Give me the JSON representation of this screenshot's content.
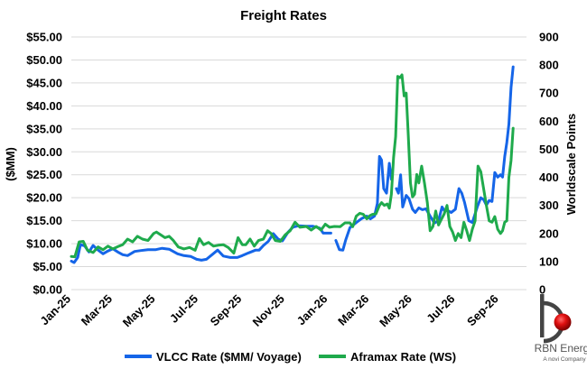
{
  "chart_data": {
    "type": "line",
    "title": "Freight Rates",
    "xlabel": "",
    "ylabel": "($MM)",
    "y2label": "Worldscale Points",
    "ylim": [
      0,
      55
    ],
    "y2lim": [
      0,
      900
    ],
    "yticks": [
      "$0.00",
      "$5.00",
      "$10.00",
      "$15.00",
      "$20.00",
      "$25.00",
      "$30.00",
      "$35.00",
      "$40.00",
      "$45.00",
      "$50.00",
      "$55.00"
    ],
    "y2ticks": [
      "0",
      "100",
      "200",
      "300",
      "400",
      "500",
      "600",
      "700",
      "800",
      "900"
    ],
    "x_range": [
      "2025-01-01",
      "2026-10-10"
    ],
    "xticks": [
      {
        "label": "Jan-25",
        "date": "2025-01-01"
      },
      {
        "label": "Mar-25",
        "date": "2025-03-01"
      },
      {
        "label": "May-25",
        "date": "2025-05-01"
      },
      {
        "label": "Jul-25",
        "date": "2025-07-01"
      },
      {
        "label": "Sep-25",
        "date": "2025-09-01"
      },
      {
        "label": "Nov-25",
        "date": "2025-11-01"
      },
      {
        "label": "Jan-26",
        "date": "2026-01-01"
      },
      {
        "label": "Mar-26",
        "date": "2026-03-01"
      },
      {
        "label": "May-26",
        "date": "2026-05-01"
      },
      {
        "label": "Jul-26",
        "date": "2026-07-01"
      },
      {
        "label": "Sep-26",
        "date": "2026-09-01"
      }
    ],
    "grid": "horizontal",
    "legend": "bottom",
    "series": [
      {
        "name": "VLCC Rate ($MM/ Voyage)",
        "axis": "left",
        "color": "#1565e8",
        "segments": [
          [
            [
              "2025-01-01",
              6.2
            ],
            [
              "2025-01-05",
              5.9
            ],
            [
              "2025-01-10",
              7.0
            ],
            [
              "2025-01-14",
              9.8
            ],
            [
              "2025-01-20",
              9.5
            ],
            [
              "2025-01-26",
              8.2
            ],
            [
              "2025-02-01",
              9.6
            ],
            [
              "2025-02-08",
              8.6
            ],
            [
              "2025-02-15",
              7.8
            ],
            [
              "2025-02-22",
              8.4
            ],
            [
              "2025-03-01",
              8.9
            ],
            [
              "2025-03-08",
              8.2
            ],
            [
              "2025-03-15",
              7.6
            ],
            [
              "2025-03-22",
              7.4
            ],
            [
              "2025-04-01",
              8.3
            ],
            [
              "2025-04-10",
              8.5
            ],
            [
              "2025-04-20",
              8.7
            ],
            [
              "2025-05-01",
              8.7
            ],
            [
              "2025-05-10",
              9.0
            ],
            [
              "2025-05-20",
              8.8
            ],
            [
              "2025-06-01",
              7.8
            ],
            [
              "2025-06-10",
              7.4
            ],
            [
              "2025-06-20",
              7.2
            ],
            [
              "2025-06-28",
              6.6
            ],
            [
              "2025-07-05",
              6.4
            ],
            [
              "2025-07-12",
              6.6
            ],
            [
              "2025-07-20",
              7.6
            ],
            [
              "2025-07-28",
              8.6
            ],
            [
              "2025-08-05",
              7.3
            ],
            [
              "2025-08-15",
              7.0
            ],
            [
              "2025-08-25",
              7.0
            ],
            [
              "2025-09-01",
              7.4
            ],
            [
              "2025-09-10",
              8.0
            ],
            [
              "2025-09-20",
              8.6
            ],
            [
              "2025-09-25",
              8.6
            ],
            [
              "2025-10-01",
              9.6
            ],
            [
              "2025-10-08",
              10.5
            ],
            [
              "2025-10-15",
              12.2
            ],
            [
              "2025-10-22",
              11.0
            ],
            [
              "2025-10-28",
              10.6
            ],
            [
              "2025-11-05",
              12.5
            ],
            [
              "2025-11-12",
              13.6
            ],
            [
              "2025-11-20",
              13.9
            ],
            [
              "2025-12-01",
              13.8
            ],
            [
              "2025-12-10",
              13.8
            ],
            [
              "2025-12-20",
              13.4
            ],
            [
              "2025-12-25",
              12.3
            ],
            [
              "2026-01-01",
              12.3
            ],
            [
              "2026-01-05",
              12.3
            ]
          ],
          [
            [
              "2026-01-12",
              10.7
            ],
            [
              "2026-01-17",
              8.7
            ],
            [
              "2026-01-22",
              8.6
            ],
            [
              "2026-01-26",
              10.8
            ],
            [
              "2026-02-01",
              13.5
            ],
            [
              "2026-02-10",
              14.6
            ],
            [
              "2026-02-18",
              15.5
            ],
            [
              "2026-02-25",
              16.0
            ],
            [
              "2026-03-02",
              15.4
            ],
            [
              "2026-03-08",
              16.0
            ],
            [
              "2026-03-12",
              18.8
            ],
            [
              "2026-03-15",
              29.0
            ],
            [
              "2026-03-18",
              28.2
            ],
            [
              "2026-03-21",
              22.0
            ],
            [
              "2026-03-25",
              21.0
            ],
            [
              "2026-03-29",
              27.5
            ],
            [
              "2026-04-01",
              24.0
            ]
          ],
          [
            [
              "2026-04-08",
              22.0
            ],
            [
              "2026-04-11",
              21.0
            ],
            [
              "2026-04-14",
              25.0
            ],
            [
              "2026-04-17",
              18.0
            ],
            [
              "2026-04-22",
              20.5
            ],
            [
              "2026-04-26",
              19.8
            ],
            [
              "2026-05-01",
              17.5
            ],
            [
              "2026-05-05",
              16.8
            ],
            [
              "2026-05-10",
              17.8
            ],
            [
              "2026-05-15",
              17.4
            ],
            [
              "2026-05-20",
              17.6
            ],
            [
              "2026-05-26",
              16.0
            ],
            [
              "2026-06-01",
              14.5
            ],
            [
              "2026-06-07",
              15.0
            ],
            [
              "2026-06-12",
              18.0
            ],
            [
              "2026-06-15",
              17.2
            ],
            [
              "2026-06-20",
              17.2
            ],
            [
              "2026-06-25",
              16.8
            ],
            [
              "2026-07-01",
              17.5
            ],
            [
              "2026-07-06",
              22.0
            ],
            [
              "2026-07-10",
              21.0
            ],
            [
              "2026-07-14",
              19.0
            ],
            [
              "2026-07-20",
              15.0
            ],
            [
              "2026-07-25",
              14.6
            ],
            [
              "2026-08-01",
              18.0
            ],
            [
              "2026-08-06",
              20.0
            ],
            [
              "2026-08-10",
              19.6
            ],
            [
              "2026-08-14",
              18.4
            ],
            [
              "2026-08-18",
              19.4
            ],
            [
              "2026-08-22",
              19.2
            ],
            [
              "2026-08-26",
              25.5
            ],
            [
              "2026-08-30",
              24.5
            ],
            [
              "2026-09-03",
              25.0
            ],
            [
              "2026-09-06",
              24.5
            ],
            [
              "2026-09-09",
              29.0
            ],
            [
              "2026-09-12",
              32.0
            ],
            [
              "2026-09-15",
              36.0
            ],
            [
              "2026-09-18",
              44.0
            ],
            [
              "2026-09-21",
              48.5
            ]
          ]
        ]
      },
      {
        "name": "Aframax Rate (WS)",
        "axis": "right",
        "color": "#1faa4c",
        "segments": [
          [
            [
              "2025-01-01",
              118
            ],
            [
              "2025-01-06",
              117
            ],
            [
              "2025-01-12",
              170
            ],
            [
              "2025-01-18",
              172
            ],
            [
              "2025-01-24",
              140
            ],
            [
              "2025-02-01",
              132
            ],
            [
              "2025-02-08",
              152
            ],
            [
              "2025-02-15",
              142
            ],
            [
              "2025-02-22",
              155
            ],
            [
              "2025-03-01",
              145
            ],
            [
              "2025-03-08",
              153
            ],
            [
              "2025-03-15",
              160
            ],
            [
              "2025-03-22",
              180
            ],
            [
              "2025-03-29",
              170
            ],
            [
              "2025-04-05",
              190
            ],
            [
              "2025-04-12",
              180
            ],
            [
              "2025-04-20",
              175
            ],
            [
              "2025-04-28",
              200
            ],
            [
              "2025-05-02",
              205
            ],
            [
              "2025-05-08",
              195
            ],
            [
              "2025-05-14",
              185
            ],
            [
              "2025-05-20",
              190
            ],
            [
              "2025-05-26",
              175
            ],
            [
              "2025-06-02",
              152
            ],
            [
              "2025-06-10",
              145
            ],
            [
              "2025-06-18",
              150
            ],
            [
              "2025-06-26",
              140
            ],
            [
              "2025-07-02",
              182
            ],
            [
              "2025-07-08",
              160
            ],
            [
              "2025-07-15",
              168
            ],
            [
              "2025-07-22",
              155
            ],
            [
              "2025-07-29",
              158
            ],
            [
              "2025-08-05",
              160
            ],
            [
              "2025-08-12",
              150
            ],
            [
              "2025-08-20",
              130
            ],
            [
              "2025-08-26",
              185
            ],
            [
              "2025-09-01",
              160
            ],
            [
              "2025-09-06",
              160
            ],
            [
              "2025-09-12",
              180
            ],
            [
              "2025-09-18",
              155
            ],
            [
              "2025-09-24",
              175
            ],
            [
              "2025-10-01",
              180
            ],
            [
              "2025-10-07",
              210
            ],
            [
              "2025-10-12",
              200
            ],
            [
              "2025-10-18",
              175
            ],
            [
              "2025-10-25",
              172
            ],
            [
              "2025-11-01",
              195
            ],
            [
              "2025-11-08",
              210
            ],
            [
              "2025-11-15",
              240
            ],
            [
              "2025-11-22",
              222
            ],
            [
              "2025-12-01",
              225
            ],
            [
              "2025-12-08",
              212
            ],
            [
              "2025-12-15",
              225
            ],
            [
              "2025-12-22",
              212
            ],
            [
              "2025-12-28",
              233
            ],
            [
              "2026-01-03",
              222
            ],
            [
              "2026-01-10",
              225
            ],
            [
              "2026-01-18",
              224
            ],
            [
              "2026-01-25",
              238
            ],
            [
              "2026-02-01",
              238
            ],
            [
              "2026-02-05",
              224
            ],
            [
              "2026-02-10",
              262
            ],
            [
              "2026-02-15",
              272
            ],
            [
              "2026-02-20",
              268
            ],
            [
              "2026-02-25",
              252
            ],
            [
              "2026-03-01",
              263
            ],
            [
              "2026-03-05",
              268
            ],
            [
              "2026-03-10",
              270
            ],
            [
              "2026-03-15",
              300
            ],
            [
              "2026-03-18",
              310
            ],
            [
              "2026-03-22",
              300
            ],
            [
              "2026-03-26",
              305
            ],
            [
              "2026-03-29",
              290
            ],
            [
              "2026-04-01",
              340
            ],
            [
              "2026-04-04",
              470
            ],
            [
              "2026-04-07",
              545
            ],
            [
              "2026-04-10",
              760
            ],
            [
              "2026-04-13",
              755
            ],
            [
              "2026-04-16",
              765
            ],
            [
              "2026-04-19",
              690
            ],
            [
              "2026-04-22",
              700
            ],
            [
              "2026-04-25",
              550
            ],
            [
              "2026-04-28",
              380
            ],
            [
              "2026-05-01",
              330
            ],
            [
              "2026-05-04",
              340
            ],
            [
              "2026-05-07",
              410
            ],
            [
              "2026-05-10",
              380
            ],
            [
              "2026-05-14",
              440
            ],
            [
              "2026-05-18",
              380
            ],
            [
              "2026-05-22",
              310
            ],
            [
              "2026-05-26",
              210
            ],
            [
              "2026-05-30",
              225
            ],
            [
              "2026-06-03",
              280
            ],
            [
              "2026-06-07",
              230
            ],
            [
              "2026-06-11",
              250
            ],
            [
              "2026-06-15",
              270
            ],
            [
              "2026-06-19",
              300
            ],
            [
              "2026-06-23",
              225
            ],
            [
              "2026-06-27",
              205
            ],
            [
              "2026-07-01",
              175
            ],
            [
              "2026-07-05",
              200
            ],
            [
              "2026-07-09",
              185
            ],
            [
              "2026-07-13",
              240
            ],
            [
              "2026-07-17",
              210
            ],
            [
              "2026-07-21",
              175
            ],
            [
              "2026-07-25",
              215
            ],
            [
              "2026-07-29",
              245
            ],
            [
              "2026-08-02",
              440
            ],
            [
              "2026-08-06",
              420
            ],
            [
              "2026-08-10",
              360
            ],
            [
              "2026-08-14",
              300
            ],
            [
              "2026-08-18",
              245
            ],
            [
              "2026-08-22",
              240
            ],
            [
              "2026-08-26",
              260
            ],
            [
              "2026-08-30",
              215
            ],
            [
              "2026-09-03",
              200
            ],
            [
              "2026-09-06",
              210
            ],
            [
              "2026-09-09",
              240
            ],
            [
              "2026-09-12",
              245
            ],
            [
              "2026-09-15",
              400
            ],
            [
              "2026-09-18",
              460
            ],
            [
              "2026-09-21",
              575
            ]
          ]
        ]
      }
    ]
  },
  "logo": {
    "name": "RBN Energy",
    "tagline": "A novi Company"
  }
}
